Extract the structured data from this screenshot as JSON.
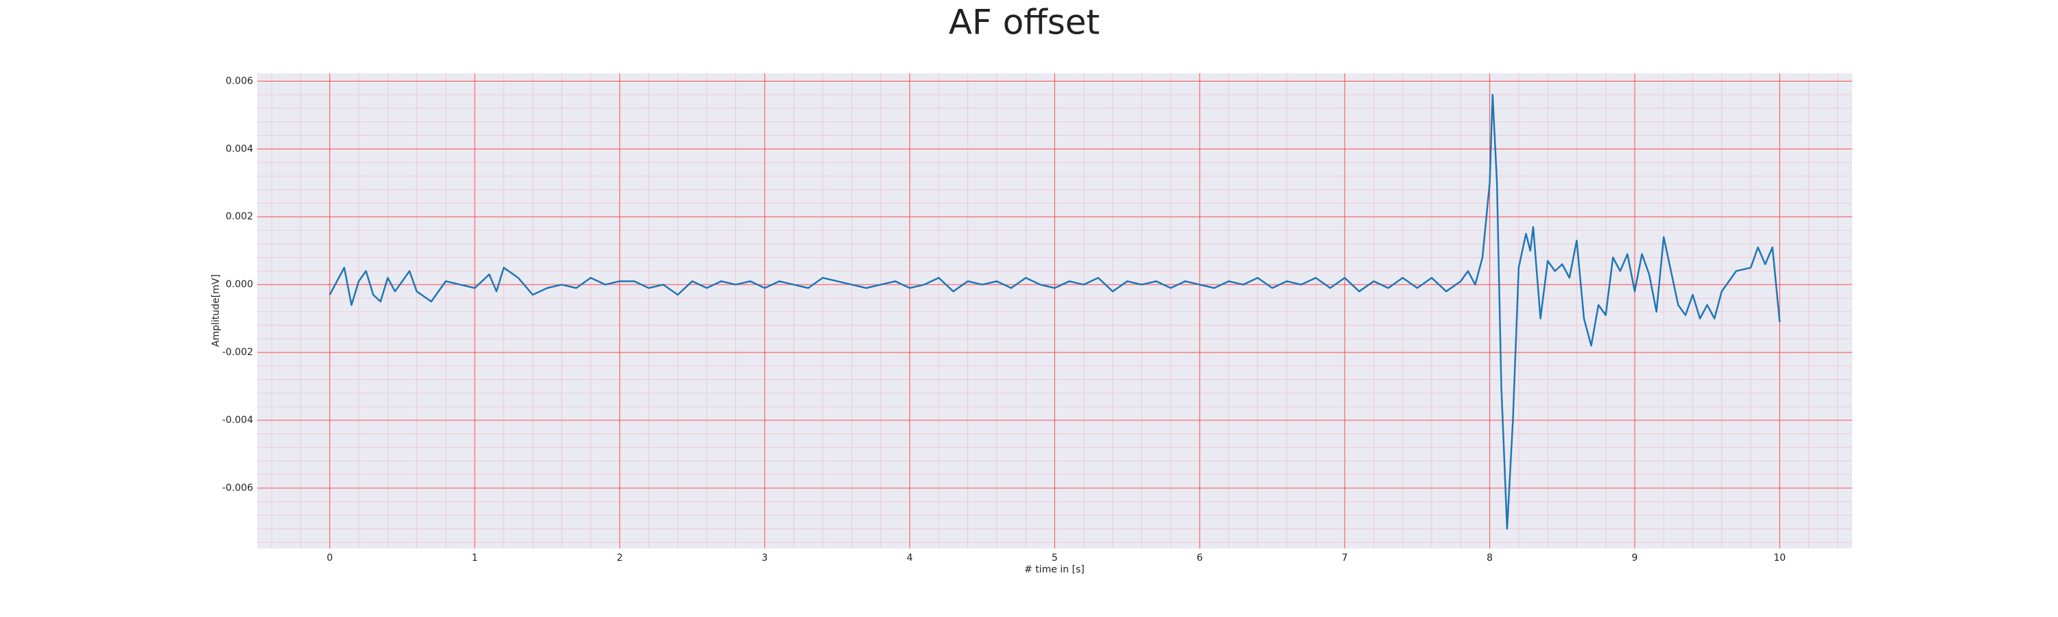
{
  "chart_data": {
    "type": "line",
    "title": "AF offset",
    "x_label": "# time in [s]",
    "y_label": "Amplitude[mV]",
    "x": [
      0.0,
      0.05,
      0.1,
      0.15,
      0.2,
      0.25,
      0.3,
      0.35,
      0.4,
      0.45,
      0.5,
      0.55,
      0.6,
      0.7,
      0.8,
      0.9,
      1.0,
      1.1,
      1.15,
      1.2,
      1.3,
      1.4,
      1.5,
      1.6,
      1.7,
      1.8,
      1.9,
      2.0,
      2.1,
      2.2,
      2.3,
      2.4,
      2.5,
      2.6,
      2.7,
      2.8,
      2.9,
      3.0,
      3.1,
      3.2,
      3.3,
      3.4,
      3.5,
      3.6,
      3.7,
      3.8,
      3.9,
      4.0,
      4.1,
      4.2,
      4.3,
      4.4,
      4.5,
      4.6,
      4.7,
      4.8,
      4.9,
      5.0,
      5.1,
      5.2,
      5.3,
      5.4,
      5.5,
      5.6,
      5.7,
      5.8,
      5.9,
      6.0,
      6.1,
      6.2,
      6.3,
      6.4,
      6.5,
      6.6,
      6.7,
      6.8,
      6.9,
      7.0,
      7.1,
      7.2,
      7.3,
      7.4,
      7.5,
      7.6,
      7.7,
      7.8,
      7.85,
      7.9,
      7.95,
      8.0,
      8.02,
      8.05,
      8.08,
      8.12,
      8.16,
      8.2,
      8.25,
      8.28,
      8.3,
      8.35,
      8.4,
      8.45,
      8.5,
      8.55,
      8.6,
      8.65,
      8.7,
      8.75,
      8.8,
      8.85,
      8.9,
      8.95,
      9.0,
      9.05,
      9.1,
      9.15,
      9.2,
      9.25,
      9.3,
      9.35,
      9.4,
      9.45,
      9.5,
      9.55,
      9.6,
      9.7,
      9.8,
      9.85,
      9.9,
      9.95,
      10.0
    ],
    "values": [
      -0.0003,
      0.0001,
      0.0005,
      -0.0006,
      0.0001,
      0.0004,
      -0.0003,
      -0.0005,
      0.0002,
      -0.0002,
      0.0001,
      0.0004,
      -0.0002,
      -0.0005,
      0.0001,
      0.0,
      -0.0001,
      0.0003,
      -0.0002,
      0.0005,
      0.0002,
      -0.0003,
      -0.0001,
      0.0,
      -0.0001,
      0.0002,
      0.0,
      0.0001,
      0.0001,
      -0.0001,
      0.0,
      -0.0003,
      0.0001,
      -0.0001,
      0.0001,
      0.0,
      0.0001,
      -0.0001,
      0.0001,
      0.0,
      -0.0001,
      0.0002,
      0.0001,
      0.0,
      -0.0001,
      0.0,
      0.0001,
      -0.0001,
      0.0,
      0.0002,
      -0.0002,
      0.0001,
      0.0,
      0.0001,
      -0.0001,
      0.0002,
      0.0,
      -0.0001,
      0.0001,
      0.0,
      0.0002,
      -0.0002,
      0.0001,
      0.0,
      0.0001,
      -0.0001,
      0.0001,
      0.0,
      -0.0001,
      0.0001,
      0.0,
      0.0002,
      -0.0001,
      0.0001,
      0.0,
      0.0002,
      -0.0001,
      0.0002,
      -0.0002,
      0.0001,
      -0.0001,
      0.0002,
      -0.0001,
      0.0002,
      -0.0002,
      0.0001,
      0.0004,
      0.0,
      0.0008,
      0.003,
      0.0056,
      0.003,
      -0.003,
      -0.0072,
      -0.004,
      0.0005,
      0.0015,
      0.001,
      0.0017,
      -0.001,
      0.0007,
      0.0004,
      0.0006,
      0.0002,
      0.0013,
      -0.001,
      -0.0018,
      -0.0006,
      -0.0009,
      0.0008,
      0.0004,
      0.0009,
      -0.0002,
      0.0009,
      0.0003,
      -0.0008,
      0.0014,
      0.0004,
      -0.0006,
      -0.0009,
      -0.0003,
      -0.001,
      -0.0006,
      -0.001,
      -0.0002,
      0.0004,
      0.0005,
      0.0011,
      0.0006,
      0.0011,
      -0.0011
    ],
    "color": "#1f77b4",
    "xlim": [
      -0.5,
      10.5
    ],
    "xticks": [
      0,
      1,
      2,
      3,
      4,
      5,
      6,
      7,
      8,
      9,
      10
    ],
    "ylim": [
      -0.00778,
      0.00623
    ],
    "yticks": [
      {
        "value": -0.006,
        "label": "-0.006"
      },
      {
        "value": -0.004,
        "label": "-0.004"
      },
      {
        "value": -0.002,
        "label": "-0.002"
      },
      {
        "value": 0,
        "label": "0.000"
      },
      {
        "value": 0.002,
        "label": "0.002"
      },
      {
        "value": 0.004,
        "label": "0.004"
      },
      {
        "value": 0.006,
        "label": "0.006"
      }
    ],
    "grid": true,
    "minor_grid": true
  }
}
